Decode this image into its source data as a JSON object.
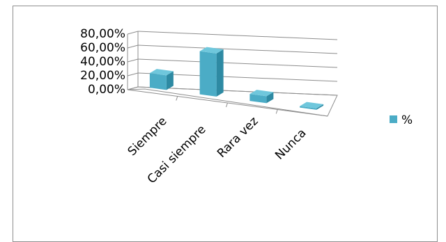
{
  "chart_data": {
    "type": "bar",
    "style": "3d-column",
    "categories": [
      "Siempre",
      "Casi siempre",
      "Rara vez",
      "Nunca"
    ],
    "series": [
      {
        "name": "%",
        "values": [
          21,
          62,
          10,
          0
        ],
        "color": "#4bacc6"
      }
    ],
    "y_ticks": [
      "0,00%",
      "20,00%",
      "40,00%",
      "60,00%",
      "80,00%"
    ],
    "ylim": [
      0,
      80
    ],
    "grid": true,
    "legend": "right"
  }
}
